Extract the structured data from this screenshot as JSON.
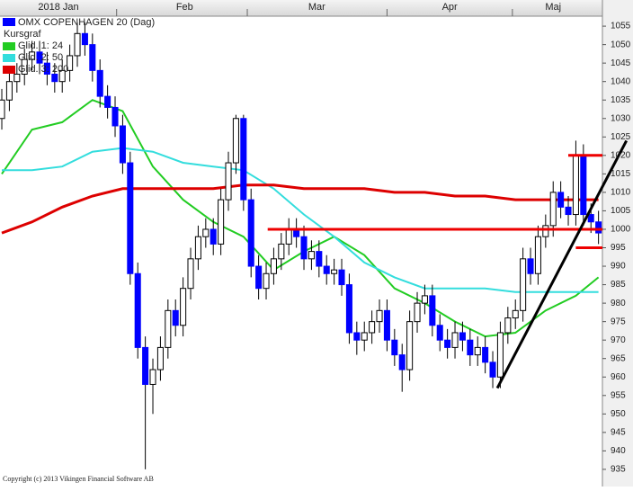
{
  "chart_data": {
    "type": "candlestick",
    "title": "OMX COPENHAGEN 20 (Dag)",
    "price_label": "Kursgraf",
    "copyright": "Copyright (c) 2013 Vikingen Financial Software AB",
    "color": "#0000ff",
    "up_color": "#ffffff",
    "down_color": "#0000ff",
    "xlim": [
      -0.24,
      79.52
    ],
    "xticks": [
      {
        "value": 7.5,
        "label": "2018 Jan"
      },
      {
        "value": 24.2,
        "label": "Feb"
      },
      {
        "value": 41.7,
        "label": "Mar"
      },
      {
        "value": 59.3,
        "label": "Apr"
      },
      {
        "value": 73,
        "label": "Maj"
      }
    ],
    "month_bounds": [
      15.2,
      32.5,
      51,
      67.6
    ],
    "ylim": [
      930.6,
      1057.7
    ],
    "yticks": [
      935,
      940,
      945,
      950,
      955,
      960,
      965,
      970,
      975,
      980,
      985,
      990,
      995,
      1000,
      1005,
      1010,
      1015,
      1020,
      1025,
      1030,
      1035,
      1040,
      1045,
      1050,
      1055
    ],
    "open": [
      1030,
      1035,
      1040,
      1042,
      1046,
      1048,
      1045,
      1042,
      1040,
      1043,
      1047,
      1053,
      1050,
      1043,
      1036,
      1033,
      1028,
      1018,
      988,
      968,
      958,
      962,
      968,
      978,
      974,
      984,
      992,
      998,
      1000,
      996,
      1008,
      1018,
      1030,
      1008,
      990,
      984,
      988,
      992,
      996,
      1000,
      998,
      992,
      994,
      990,
      988,
      989,
      985,
      972,
      970,
      972,
      975,
      978,
      970,
      966,
      962,
      975,
      980,
      982,
      974,
      970,
      968,
      972,
      970,
      966,
      968,
      964,
      960,
      972,
      976,
      978,
      992,
      988,
      998,
      1001,
      1010,
      1006,
      1004,
      1020,
      1004,
      1002
    ],
    "high": [
      1038,
      1043,
      1045,
      1049,
      1051,
      1051,
      1048,
      1045,
      1046,
      1050,
      1056,
      1056,
      1053,
      1046,
      1039,
      1036,
      1031,
      1021,
      991,
      971,
      965,
      971,
      981,
      981,
      987,
      995,
      1001,
      1003,
      1003,
      1011,
      1021,
      1031,
      1031,
      1011,
      993,
      991,
      995,
      999,
      1003,
      1003,
      1001,
      997,
      997,
      993,
      992,
      992,
      988,
      975,
      975,
      978,
      981,
      981,
      973,
      969,
      978,
      983,
      985,
      985,
      977,
      973,
      975,
      975,
      973,
      971,
      971,
      967,
      975,
      979,
      981,
      995,
      995,
      1001,
      1004,
      1013,
      1013,
      1009,
      1024,
      1023,
      1007,
      1005
    ],
    "low": [
      1027,
      1032,
      1037,
      1039,
      1043,
      1042,
      1039,
      1037,
      1037,
      1040,
      1044,
      1047,
      1040,
      1033,
      1030,
      1025,
      1015,
      985,
      965,
      935,
      950,
      959,
      965,
      971,
      971,
      981,
      989,
      995,
      993,
      993,
      1005,
      1015,
      1005,
      987,
      981,
      981,
      985,
      989,
      993,
      995,
      989,
      989,
      987,
      985,
      985,
      982,
      969,
      966,
      967,
      969,
      972,
      967,
      963,
      956,
      959,
      972,
      977,
      971,
      967,
      965,
      965,
      967,
      963,
      963,
      961,
      957,
      957,
      969,
      973,
      975,
      985,
      985,
      995,
      998,
      1003,
      1001,
      1001,
      1001,
      999,
      996
    ],
    "close": [
      1035,
      1040,
      1042,
      1046,
      1048,
      1045,
      1042,
      1040,
      1043,
      1047,
      1053,
      1050,
      1043,
      1036,
      1033,
      1028,
      1018,
      988,
      968,
      958,
      962,
      968,
      978,
      974,
      984,
      992,
      998,
      1000,
      996,
      1008,
      1018,
      1030,
      1008,
      990,
      984,
      988,
      992,
      996,
      1000,
      998,
      992,
      994,
      990,
      988,
      989,
      985,
      972,
      970,
      972,
      975,
      978,
      970,
      966,
      962,
      975,
      980,
      982,
      974,
      970,
      968,
      972,
      970,
      966,
      968,
      964,
      960,
      972,
      976,
      978,
      992,
      988,
      998,
      1001,
      1010,
      1006,
      1004,
      1020,
      1004,
      1002,
      999
    ],
    "series": [
      {
        "name": "Glid. 1: 24",
        "color": "#22cc22",
        "x": [
          0,
          4,
          8,
          12,
          16,
          20,
          24,
          28,
          32,
          36,
          40,
          44,
          48,
          52,
          56,
          60,
          64,
          68,
          72,
          76,
          79
        ],
        "values": [
          1015,
          1027,
          1029,
          1035,
          1032,
          1017,
          1008,
          1002,
          998,
          989,
          994,
          998,
          993,
          984,
          980,
          975,
          971,
          972,
          978,
          982,
          987
        ]
      },
      {
        "name": "Glid. 2: 50",
        "color": "#33dddd",
        "x": [
          0,
          4,
          8,
          12,
          16,
          20,
          24,
          28,
          32,
          36,
          40,
          44,
          48,
          52,
          56,
          60,
          64,
          68,
          72,
          76,
          79
        ],
        "values": [
          1016,
          1016,
          1017,
          1021,
          1022,
          1021,
          1018,
          1017,
          1016,
          1011,
          1004,
          998,
          991,
          987,
          984,
          984,
          984,
          983,
          983,
          983,
          983
        ]
      },
      {
        "name": "Glid. 3: 200",
        "color": "#dd0000",
        "x": [
          0,
          4,
          8,
          12,
          16,
          20,
          24,
          28,
          32,
          36,
          40,
          44,
          48,
          52,
          56,
          60,
          64,
          68,
          72,
          76,
          79
        ],
        "values": [
          999,
          1002,
          1006,
          1009,
          1011,
          1011,
          1011,
          1011,
          1012,
          1012,
          1011,
          1011,
          1011,
          1010,
          1010,
          1009,
          1009,
          1008,
          1008,
          1008,
          1008
        ]
      }
    ],
    "lines": [
      {
        "color": "#ee0000",
        "x": [
          35.2,
          79.52
        ],
        "values": [
          1000,
          1000
        ]
      },
      {
        "color": "#ee0000",
        "x": [
          75,
          79.52
        ],
        "values": [
          1020,
          1020
        ]
      },
      {
        "color": "#ee0000",
        "x": [
          76,
          79.52
        ],
        "values": [
          995,
          995
        ]
      },
      {
        "color": "#000000",
        "x": [
          65.6,
          82.7
        ],
        "values": [
          957,
          1024
        ]
      }
    ]
  }
}
